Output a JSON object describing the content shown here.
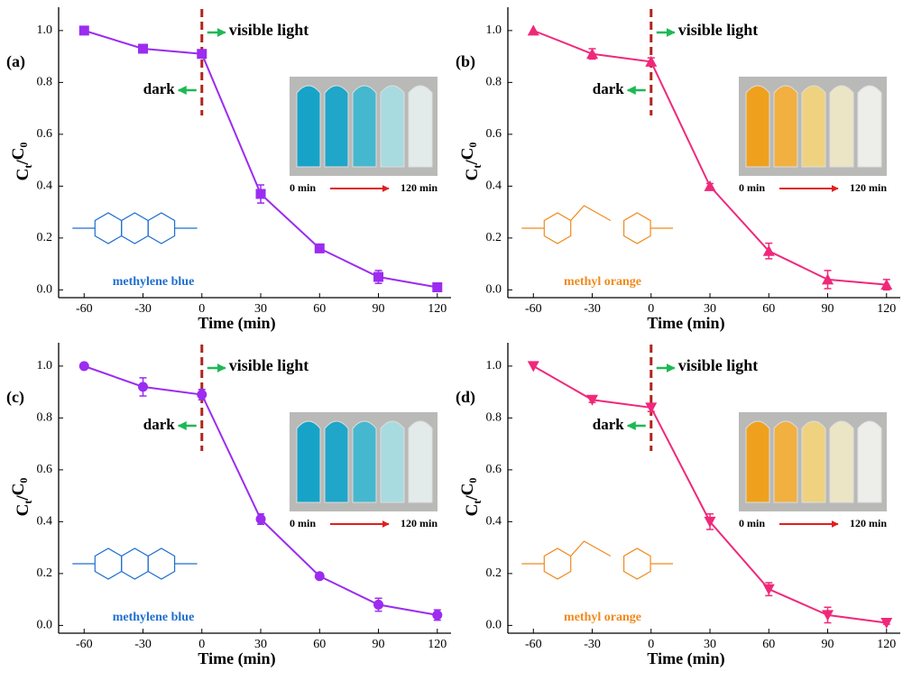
{
  "chart_data": [
    {
      "type": "line",
      "panel_label": "(a)",
      "xlabel": "Time (min)",
      "ylabel": "Ct/C0",
      "x": [
        -60,
        -30,
        0,
        30,
        60,
        90,
        120
      ],
      "series": [
        {
          "color": "#9b2cf0",
          "marker": "square",
          "values": [
            1.0,
            0.93,
            0.91,
            0.37,
            0.16,
            0.05,
            0.01
          ],
          "errors": [
            0,
            0.015,
            0.01,
            0.035,
            0.012,
            0.025,
            0.005
          ]
        }
      ],
      "xlim": [
        -73,
        127
      ],
      "xticks": [
        -60,
        -30,
        0,
        30,
        60,
        90,
        120
      ],
      "ylim": [
        -0.03,
        1.09
      ],
      "yticks": [
        {
          "value": 0,
          "label": "0.0"
        },
        0.2,
        0.4,
        0.6,
        0.8,
        {
          "value": 1,
          "label": "1.0"
        }
      ],
      "light_on_time": 0,
      "light_label": "visible light",
      "dark_label": "dark",
      "inset_start": "0 min",
      "inset_end": "120 min",
      "dye": "methylene blue",
      "dye_color": "#1f6fd0"
    },
    {
      "type": "line",
      "panel_label": "(b)",
      "xlabel": "Time (min)",
      "ylabel": "Ct/C0",
      "x": [
        -60,
        -30,
        0,
        30,
        60,
        90,
        120
      ],
      "series": [
        {
          "color": "#f0287a",
          "marker": "triangle-up",
          "values": [
            1.0,
            0.91,
            0.88,
            0.4,
            0.15,
            0.04,
            0.02
          ],
          "errors": [
            0,
            0.02,
            0.015,
            0.01,
            0.03,
            0.035,
            0.02
          ]
        }
      ],
      "xlim": [
        -73,
        127
      ],
      "xticks": [
        -60,
        -30,
        0,
        30,
        60,
        90,
        120
      ],
      "ylim": [
        -0.03,
        1.09
      ],
      "yticks": [
        {
          "value": 0,
          "label": "0.0"
        },
        0.2,
        0.4,
        0.6,
        0.8,
        {
          "value": 1,
          "label": "1.0"
        }
      ],
      "light_on_time": 0,
      "light_label": "visible light",
      "dark_label": "dark",
      "inset_start": "0 min",
      "inset_end": "120 min",
      "dye": "methyl orange",
      "dye_color": "#f08a1c"
    },
    {
      "type": "line",
      "panel_label": "(c)",
      "xlabel": "Time (min)",
      "ylabel": "Ct/C0",
      "x": [
        -60,
        -30,
        0,
        30,
        60,
        90,
        120
      ],
      "series": [
        {
          "color": "#9b2cf0",
          "marker": "circle",
          "values": [
            1.0,
            0.92,
            0.89,
            0.41,
            0.19,
            0.08,
            0.04
          ],
          "errors": [
            0,
            0.035,
            0.02,
            0.02,
            0.01,
            0.025,
            0.02
          ]
        }
      ],
      "xlim": [
        -73,
        127
      ],
      "xticks": [
        -60,
        -30,
        0,
        30,
        60,
        90,
        120
      ],
      "ylim": [
        -0.03,
        1.09
      ],
      "yticks": [
        {
          "value": 0,
          "label": "0.0"
        },
        0.2,
        0.4,
        0.6,
        0.8,
        {
          "value": 1,
          "label": "1.0"
        }
      ],
      "light_on_time": 0,
      "light_label": "visible light",
      "dark_label": "dark",
      "inset_start": "0 min",
      "inset_end": "120 min",
      "dye": "methylene blue",
      "dye_color": "#1f6fd0"
    },
    {
      "type": "line",
      "panel_label": "(d)",
      "xlabel": "Time (min)",
      "ylabel": "Ct/C0",
      "x": [
        -60,
        -30,
        0,
        30,
        60,
        90,
        120
      ],
      "series": [
        {
          "color": "#f0287a",
          "marker": "triangle-down",
          "values": [
            1.0,
            0.87,
            0.84,
            0.4,
            0.14,
            0.04,
            0.01
          ],
          "errors": [
            0,
            0.01,
            0.015,
            0.03,
            0.025,
            0.03,
            0.005
          ]
        }
      ],
      "xlim": [
        -73,
        127
      ],
      "xticks": [
        -60,
        -30,
        0,
        30,
        60,
        90,
        120
      ],
      "ylim": [
        -0.03,
        1.09
      ],
      "yticks": [
        {
          "value": 0,
          "label": "0.0"
        },
        0.2,
        0.4,
        0.6,
        0.8,
        {
          "value": 1,
          "label": "1.0"
        }
      ],
      "light_on_time": 0,
      "light_label": "visible light",
      "dark_label": "dark",
      "inset_start": "0 min",
      "inset_end": "120 min",
      "dye": "methyl orange",
      "dye_color": "#f08a1c"
    }
  ]
}
